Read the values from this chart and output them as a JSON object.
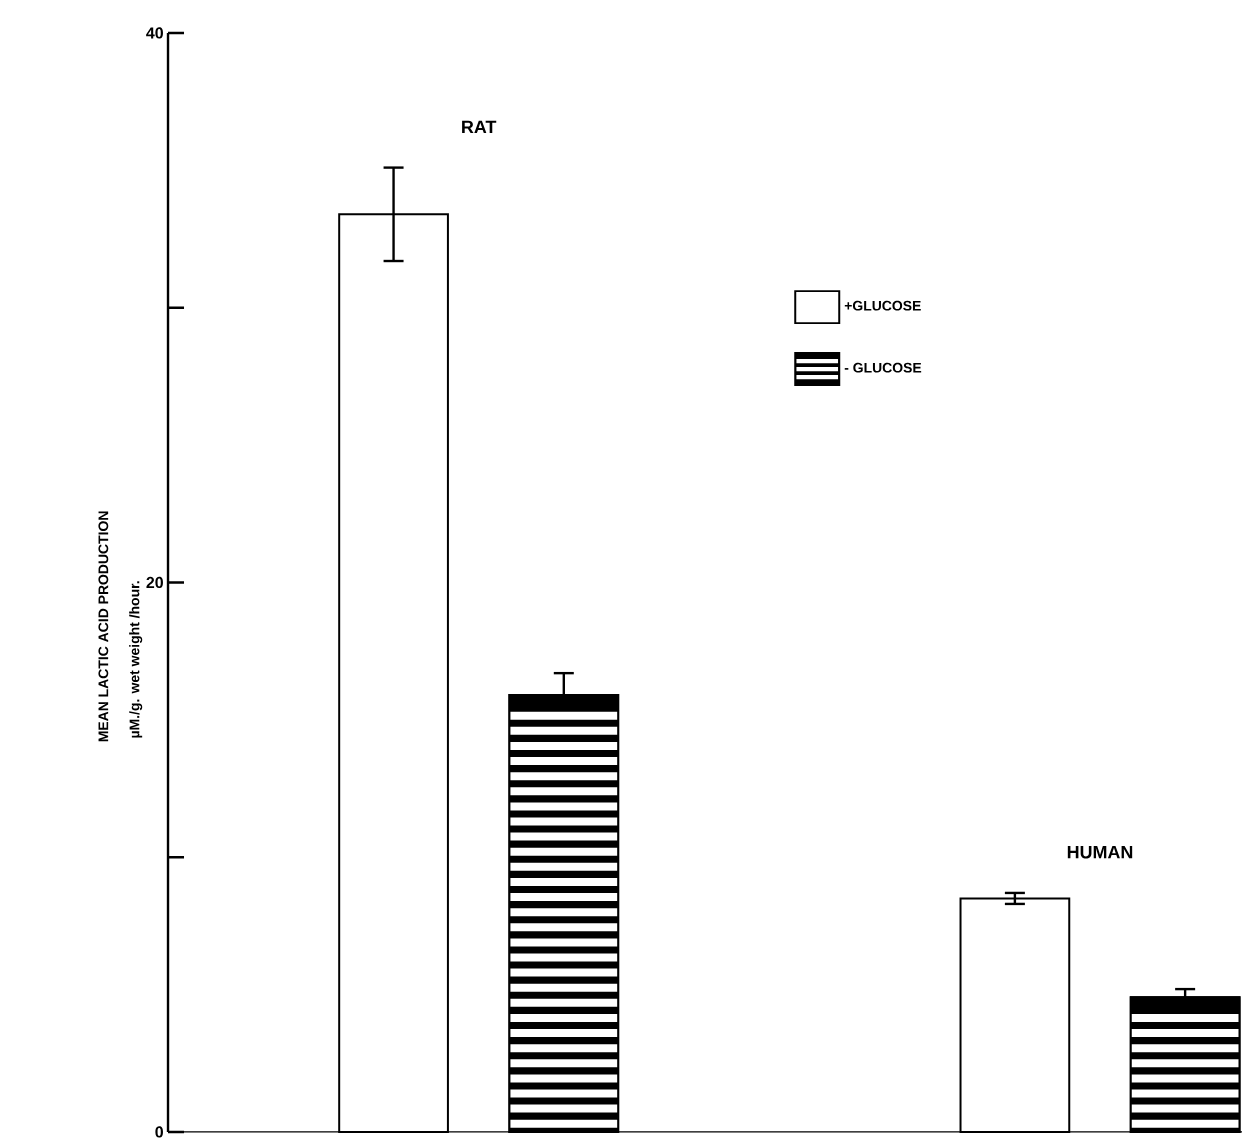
{
  "chart_data": {
    "type": "bar",
    "categories": [
      "RAT",
      "HUMAN"
    ],
    "ylabel": "MEAN LACTIC ACID PRODUCTION",
    "annotations": [
      "µM./g. wet weight /hour."
    ],
    "ylim": [
      0,
      40
    ],
    "yticks": [
      {
        "value": 0,
        "label": "0"
      },
      {
        "value": 10,
        "label": null
      },
      {
        "value": 20,
        "label": "20"
      },
      {
        "value": 30,
        "label": null
      },
      {
        "value": 40,
        "label": "40"
      }
    ],
    "series": [
      {
        "name": "+GLUCOSE",
        "color": "#ffffff",
        "values": [
          33.4,
          8.5
        ],
        "errors": [
          1.7,
          0.2
        ]
      },
      {
        "name": "- GLUCOSE",
        "color": "#000000",
        "values": [
          15.9,
          4.9
        ],
        "errors": [
          0.8,
          0.3
        ]
      }
    ],
    "legend": "top right"
  }
}
